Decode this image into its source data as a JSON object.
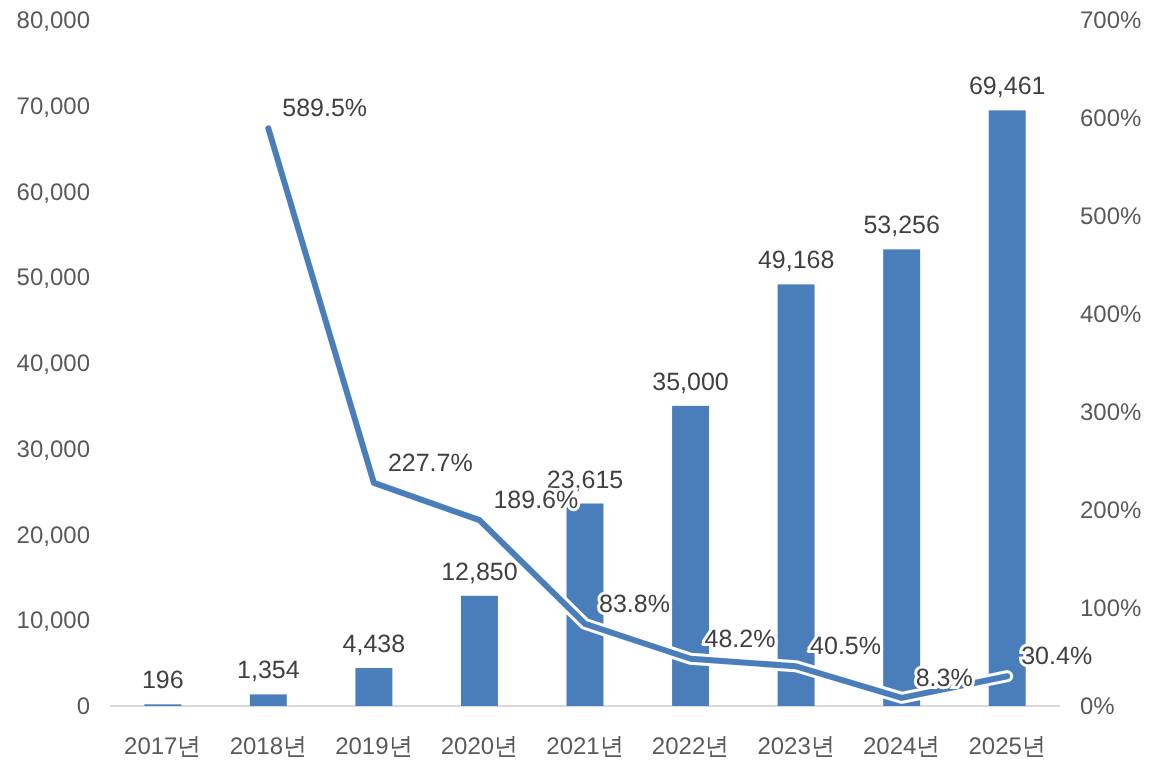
{
  "chart_data": {
    "type": "bar",
    "categories": [
      "2017년",
      "2018년",
      "2019년",
      "2020년",
      "2021년",
      "2022년",
      "2023년",
      "2024년",
      "2025년"
    ],
    "series": [
      {
        "color": "#4a7ebb",
        "values": [
          196,
          1354,
          4438,
          12850,
          23615,
          35000,
          49168,
          53256,
          69461
        ],
        "value_labels": [
          "196",
          "1,354",
          "4,438",
          "12,850",
          "23,615",
          "35,000",
          "49,168",
          "53,256",
          "69,461"
        ]
      },
      {
        "type": "line",
        "axis": "y2",
        "color": "#4a7ebb",
        "values": [
          null,
          589.5,
          227.7,
          189.6,
          83.8,
          48.2,
          40.5,
          8.3,
          30.4
        ],
        "value_labels": [
          null,
          "589.5%",
          "227.7%",
          "189.6%",
          "83.8%",
          "48.2%",
          "40.5%",
          "8.3%",
          "30.4%"
        ]
      }
    ],
    "ylim": [
      0,
      80000
    ],
    "yticks": [
      {
        "value": 0,
        "label": "0"
      },
      {
        "value": 10000,
        "label": "10,000"
      },
      {
        "value": 20000,
        "label": "20,000"
      },
      {
        "value": 30000,
        "label": "30,000"
      },
      {
        "value": 40000,
        "label": "40,000"
      },
      {
        "value": 50000,
        "label": "50,000"
      },
      {
        "value": 60000,
        "label": "60,000"
      },
      {
        "value": 70000,
        "label": "70,000"
      },
      {
        "value": 80000,
        "label": "80,000"
      }
    ],
    "y2lim": [
      0,
      700
    ],
    "y2ticks": [
      {
        "value": 0,
        "label": "0%"
      },
      {
        "value": 100,
        "label": "100%"
      },
      {
        "value": 200,
        "label": "200%"
      },
      {
        "value": 300,
        "label": "300%"
      },
      {
        "value": 400,
        "label": "400%"
      },
      {
        "value": 500,
        "label": "500%"
      },
      {
        "value": 600,
        "label": "600%"
      },
      {
        "value": 700,
        "label": "700%"
      }
    ]
  }
}
